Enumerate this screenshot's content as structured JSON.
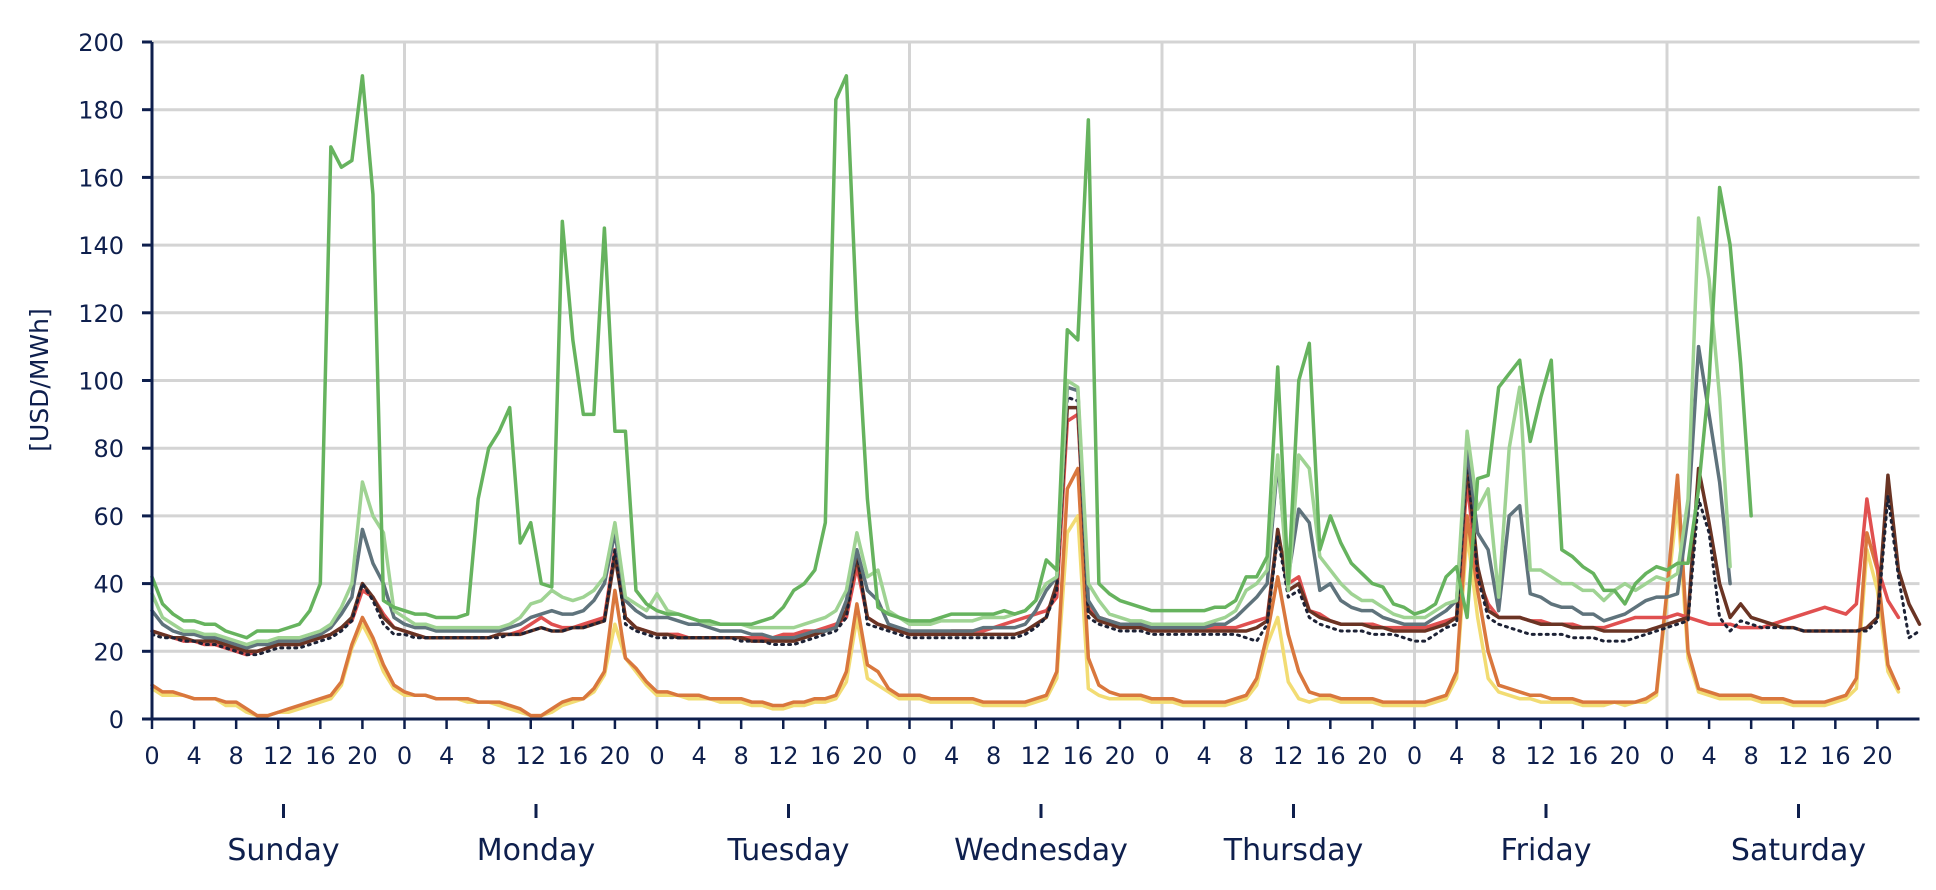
{
  "chart_data": {
    "type": "line",
    "title": "",
    "xlabel": "",
    "ylabel": "[USD/MWh]",
    "ylim": [
      0,
      200
    ],
    "y_ticks": [
      0,
      20,
      40,
      60,
      80,
      100,
      120,
      140,
      160,
      180,
      200
    ],
    "x_hour_ticks": [
      "0",
      "4",
      "8",
      "12",
      "16",
      "20"
    ],
    "days": [
      "Sunday",
      "Monday",
      "Tuesday",
      "Wednesday",
      "Thursday",
      "Friday",
      "Saturday"
    ],
    "grid": true,
    "legend": "none",
    "series": [
      {
        "color": "#f2dc73",
        "values": [
          9,
          7,
          7,
          7,
          6,
          6,
          6,
          4,
          4,
          2,
          1,
          1,
          2,
          2,
          3,
          4,
          5,
          6,
          10,
          21,
          28,
          22,
          14,
          9,
          7,
          7,
          7,
          6,
          6,
          6,
          5,
          5,
          5,
          4,
          3,
          2,
          1,
          1,
          2,
          4,
          5,
          6,
          8,
          13,
          28,
          18,
          14,
          10,
          7,
          7,
          7,
          6,
          6,
          6,
          5,
          5,
          5,
          4,
          4,
          3,
          3,
          4,
          4,
          5,
          5,
          6,
          11,
          30,
          12,
          10,
          8,
          6,
          6,
          6,
          5,
          5,
          5,
          5,
          5,
          4,
          4,
          4,
          4,
          4,
          5,
          6,
          12,
          55,
          60,
          9,
          7,
          6,
          6,
          6,
          6,
          5,
          5,
          5,
          4,
          4,
          4,
          4,
          4,
          5,
          6,
          10,
          22,
          30,
          11,
          6,
          5,
          6,
          6,
          5,
          5,
          5,
          5,
          4,
          4,
          4,
          4,
          4,
          5,
          6,
          12,
          55,
          30,
          12,
          8,
          7,
          6,
          6,
          5,
          5,
          5,
          5,
          4,
          4,
          4,
          5,
          4,
          5,
          5,
          7,
          36,
          64,
          18,
          8,
          7,
          6,
          6,
          6,
          6,
          5,
          5,
          5,
          4,
          4,
          4,
          4,
          5,
          6,
          9,
          50,
          38,
          14,
          8
        ]
      },
      {
        "color": "#d9773d",
        "values": [
          10,
          8,
          8,
          7,
          6,
          6,
          6,
          5,
          5,
          3,
          1,
          1,
          2,
          3,
          4,
          5,
          6,
          7,
          11,
          22,
          30,
          24,
          16,
          10,
          8,
          7,
          7,
          6,
          6,
          6,
          6,
          5,
          5,
          5,
          4,
          3,
          1,
          1,
          3,
          5,
          6,
          6,
          9,
          14,
          38,
          18,
          15,
          11,
          8,
          8,
          7,
          7,
          7,
          6,
          6,
          6,
          6,
          5,
          5,
          4,
          4,
          5,
          5,
          6,
          6,
          7,
          14,
          34,
          16,
          14,
          9,
          7,
          7,
          7,
          6,
          6,
          6,
          6,
          6,
          5,
          5,
          5,
          5,
          5,
          6,
          7,
          14,
          68,
          74,
          18,
          10,
          8,
          7,
          7,
          7,
          6,
          6,
          6,
          5,
          5,
          5,
          5,
          5,
          6,
          7,
          12,
          25,
          42,
          25,
          14,
          8,
          7,
          7,
          6,
          6,
          6,
          6,
          5,
          5,
          5,
          5,
          5,
          6,
          7,
          14,
          60,
          38,
          20,
          10,
          9,
          8,
          7,
          7,
          6,
          6,
          6,
          5,
          5,
          5,
          5,
          5,
          5,
          6,
          8,
          38,
          72,
          20,
          9,
          8,
          7,
          7,
          7,
          7,
          6,
          6,
          6,
          5,
          5,
          5,
          5,
          6,
          7,
          12,
          55,
          44,
          16,
          9
        ]
      },
      {
        "color": "#e05050",
        "values": [
          26,
          25,
          24,
          23,
          23,
          22,
          22,
          21,
          20,
          19,
          20,
          21,
          22,
          22,
          22,
          23,
          24,
          25,
          27,
          29,
          38,
          36,
          31,
          27,
          26,
          25,
          24,
          24,
          24,
          24,
          24,
          24,
          24,
          25,
          25,
          26,
          28,
          30,
          28,
          27,
          27,
          28,
          29,
          30,
          50,
          30,
          27,
          26,
          25,
          25,
          25,
          24,
          24,
          24,
          24,
          24,
          24,
          24,
          24,
          24,
          25,
          25,
          26,
          26,
          27,
          28,
          30,
          45,
          30,
          28,
          27,
          26,
          25,
          25,
          25,
          25,
          26,
          26,
          26,
          26,
          27,
          28,
          29,
          30,
          31,
          32,
          36,
          88,
          90,
          33,
          30,
          29,
          28,
          28,
          28,
          27,
          27,
          27,
          27,
          27,
          27,
          27,
          27,
          27,
          28,
          29,
          30,
          55,
          40,
          42,
          32,
          31,
          29,
          28,
          28,
          28,
          28,
          27,
          27,
          27,
          27,
          27,
          28,
          29,
          30,
          70,
          42,
          34,
          30,
          30,
          30,
          29,
          29,
          28,
          28,
          28,
          27,
          27,
          27,
          28,
          29,
          30,
          30,
          30,
          30,
          31,
          30,
          29,
          28,
          28,
          28,
          27,
          27,
          27,
          28,
          29,
          30,
          31,
          32,
          33,
          32,
          31,
          34,
          65,
          45,
          35,
          30
        ]
      },
      {
        "color": "#6a3424",
        "values": [
          26,
          25,
          24,
          24,
          23,
          23,
          23,
          22,
          21,
          20,
          20,
          21,
          22,
          22,
          22,
          23,
          24,
          25,
          27,
          30,
          40,
          36,
          30,
          27,
          26,
          25,
          24,
          24,
          24,
          24,
          24,
          24,
          24,
          25,
          25,
          25,
          26,
          27,
          26,
          26,
          27,
          27,
          28,
          29,
          48,
          30,
          27,
          26,
          25,
          25,
          24,
          24,
          24,
          24,
          24,
          24,
          24,
          23,
          23,
          23,
          23,
          23,
          24,
          25,
          26,
          27,
          32,
          48,
          30,
          28,
          27,
          26,
          25,
          25,
          25,
          25,
          25,
          25,
          25,
          25,
          25,
          25,
          25,
          26,
          28,
          30,
          40,
          92,
          92,
          32,
          29,
          28,
          27,
          27,
          27,
          26,
          26,
          26,
          26,
          26,
          26,
          26,
          26,
          26,
          26,
          27,
          29,
          56,
          38,
          40,
          32,
          30,
          29,
          28,
          28,
          28,
          27,
          27,
          26,
          26,
          26,
          26,
          27,
          28,
          30,
          75,
          45,
          32,
          30,
          30,
          30,
          29,
          28,
          28,
          28,
          27,
          27,
          27,
          26,
          26,
          26,
          26,
          26,
          27,
          28,
          29,
          30,
          74,
          58,
          40,
          30,
          34,
          30,
          29,
          28,
          27,
          27,
          26,
          26,
          26,
          26,
          26,
          26,
          27,
          30,
          72,
          44,
          34,
          28
        ]
      },
      {
        "color": "#1d2235",
        "dashed": true,
        "values": [
          25,
          24,
          24,
          23,
          23,
          22,
          22,
          21,
          20,
          19,
          19,
          20,
          21,
          21,
          21,
          22,
          23,
          24,
          26,
          29,
          40,
          35,
          28,
          25,
          25,
          24,
          24,
          24,
          24,
          24,
          24,
          24,
          24,
          24,
          25,
          25,
          26,
          27,
          26,
          26,
          27,
          27,
          28,
          29,
          50,
          28,
          26,
          25,
          24,
          24,
          24,
          24,
          24,
          24,
          24,
          24,
          23,
          23,
          23,
          22,
          22,
          22,
          23,
          24,
          25,
          26,
          30,
          50,
          28,
          27,
          26,
          25,
          24,
          24,
          24,
          24,
          24,
          24,
          24,
          24,
          24,
          24,
          24,
          25,
          27,
          30,
          38,
          95,
          94,
          30,
          28,
          27,
          26,
          26,
          26,
          25,
          25,
          25,
          25,
          25,
          25,
          25,
          25,
          25,
          24,
          23,
          28,
          54,
          36,
          38,
          30,
          28,
          27,
          26,
          26,
          26,
          25,
          25,
          25,
          24,
          23,
          23,
          25,
          27,
          28,
          78,
          42,
          30,
          28,
          27,
          26,
          25,
          25,
          25,
          25,
          24,
          24,
          24,
          23,
          23,
          23,
          24,
          25,
          26,
          27,
          28,
          29,
          65,
          55,
          30,
          26,
          29,
          28,
          27,
          27,
          27,
          27,
          26,
          26,
          26,
          26,
          26,
          26,
          26,
          29,
          66,
          42,
          24,
          26
        ]
      },
      {
        "color": "#5f737c",
        "values": [
          32,
          28,
          26,
          25,
          25,
          24,
          24,
          23,
          22,
          21,
          22,
          22,
          23,
          23,
          23,
          24,
          25,
          27,
          31,
          36,
          56,
          46,
          40,
          30,
          28,
          27,
          27,
          26,
          26,
          26,
          26,
          26,
          26,
          26,
          27,
          28,
          30,
          31,
          32,
          31,
          31,
          32,
          35,
          40,
          55,
          35,
          32,
          30,
          30,
          30,
          29,
          28,
          28,
          27,
          26,
          26,
          26,
          25,
          25,
          24,
          24,
          24,
          25,
          26,
          26,
          27,
          35,
          50,
          38,
          35,
          28,
          27,
          26,
          26,
          26,
          26,
          26,
          26,
          26,
          27,
          27,
          27,
          27,
          28,
          32,
          38,
          42,
          98,
          97,
          35,
          30,
          29,
          28,
          28,
          28,
          27,
          27,
          27,
          27,
          27,
          27,
          28,
          28,
          30,
          33,
          36,
          40,
          76,
          42,
          62,
          58,
          38,
          40,
          35,
          33,
          32,
          32,
          30,
          29,
          28,
          28,
          28,
          30,
          32,
          35,
          80,
          55,
          50,
          32,
          60,
          63,
          37,
          36,
          34,
          33,
          33,
          31,
          31,
          29,
          30,
          31,
          33,
          35,
          36,
          36,
          37,
          60,
          110,
          90,
          70,
          40
        ]
      },
      {
        "color": "#9fd393",
        "values": [
          37,
          30,
          28,
          26,
          26,
          25,
          25,
          24,
          23,
          22,
          23,
          23,
          24,
          24,
          24,
          25,
          26,
          28,
          33,
          40,
          70,
          60,
          55,
          32,
          30,
          28,
          28,
          27,
          27,
          27,
          27,
          27,
          27,
          27,
          28,
          30,
          34,
          35,
          38,
          36,
          35,
          36,
          38,
          42,
          58,
          36,
          34,
          32,
          37,
          32,
          31,
          30,
          29,
          28,
          28,
          28,
          28,
          27,
          27,
          27,
          27,
          27,
          28,
          29,
          30,
          32,
          38,
          55,
          42,
          44,
          32,
          30,
          28,
          28,
          28,
          29,
          29,
          29,
          29,
          30,
          30,
          30,
          31,
          32,
          35,
          40,
          42,
          100,
          98,
          40,
          35,
          31,
          30,
          29,
          29,
          28,
          28,
          28,
          28,
          28,
          28,
          29,
          30,
          32,
          38,
          40,
          44,
          78,
          38,
          78,
          74,
          48,
          44,
          40,
          37,
          35,
          35,
          33,
          31,
          30,
          30,
          30,
          32,
          34,
          35,
          85,
          62,
          68,
          36,
          80,
          98,
          44,
          44,
          42,
          40,
          40,
          38,
          38,
          35,
          38,
          40,
          38,
          40,
          42,
          41,
          43,
          65,
          148,
          130,
          95,
          45
        ]
      },
      {
        "color": "#66b35e",
        "values": [
          42,
          34,
          31,
          29,
          29,
          28,
          28,
          26,
          25,
          24,
          26,
          26,
          26,
          27,
          28,
          32,
          40,
          169,
          163,
          165,
          190,
          155,
          35,
          33,
          32,
          31,
          31,
          30,
          30,
          30,
          31,
          65,
          80,
          85,
          92,
          52,
          58,
          40,
          39,
          147,
          112,
          90,
          90,
          145,
          85,
          85,
          38,
          34,
          32,
          31,
          31,
          30,
          29,
          29,
          28,
          28,
          28,
          28,
          29,
          30,
          33,
          38,
          40,
          44,
          58,
          183,
          190,
          118,
          65,
          33,
          31,
          30,
          29,
          29,
          29,
          30,
          31,
          31,
          31,
          31,
          31,
          32,
          31,
          32,
          35,
          47,
          44,
          115,
          112,
          177,
          40,
          37,
          35,
          34,
          33,
          32,
          32,
          32,
          32,
          32,
          32,
          33,
          33,
          35,
          42,
          42,
          48,
          104,
          40,
          100,
          111,
          50,
          60,
          52,
          46,
          43,
          40,
          39,
          34,
          33,
          31,
          32,
          34,
          42,
          45,
          30,
          71,
          72,
          98,
          102,
          106,
          82,
          95,
          106,
          50,
          48,
          45,
          43,
          38,
          38,
          34,
          40,
          43,
          45,
          44,
          46,
          46,
          68,
          100,
          157,
          140,
          105,
          60
        ]
      }
    ]
  }
}
